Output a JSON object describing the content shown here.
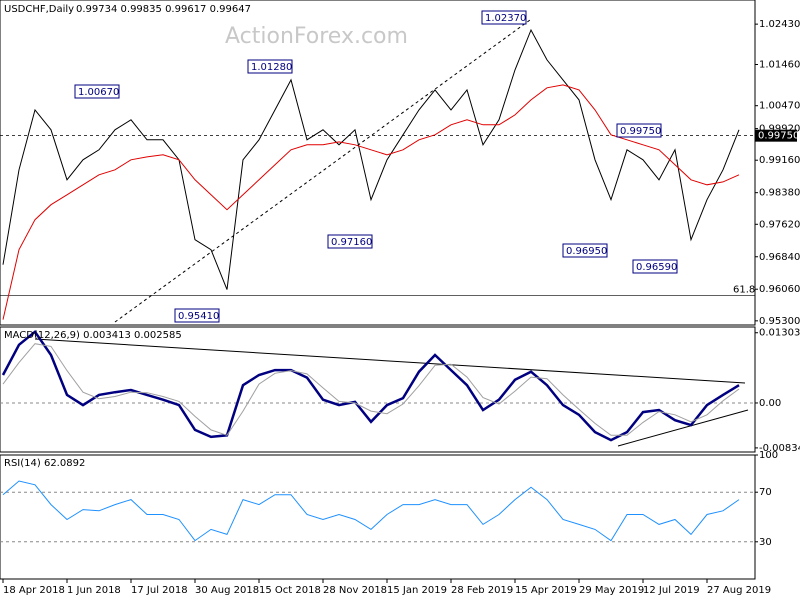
{
  "chart_data": [
    {
      "type": "line",
      "title": "USDCHF,Daily",
      "subtitle": "0.99734 0.99835 0.99617 0.99647",
      "watermark": "ActionForex.com",
      "categories": [
        "18 Apr 2018",
        null,
        null,
        null,
        "1 Jun 2018",
        null,
        null,
        null,
        "17 Jul 2018",
        null,
        null,
        null,
        "30 Aug 2018",
        null,
        null,
        null,
        "15 Oct 2018",
        null,
        null,
        null,
        "28 Nov 2018",
        null,
        null,
        null,
        "15 Jan 2019",
        null,
        null,
        null,
        "28 Feb 2019",
        null,
        null,
        null,
        "15 Apr 2019",
        null,
        null,
        null,
        "29 May 2019",
        null,
        null,
        null,
        "12 Jul 2019",
        null,
        null,
        null,
        "27 Aug 2019",
        null,
        null
      ],
      "series": [
        {
          "color": "#000000",
          "values": [
            0.9665,
            0.9893,
            1.0037,
            0.9989,
            0.9869,
            0.9917,
            0.9941,
            0.9989,
            1.0013,
            0.9965,
            0.9965,
            0.9917,
            0.9725,
            0.9701,
            0.9605,
            0.9917,
            0.9965,
            1.0037,
            1.0109,
            0.9965,
            0.9989,
            0.9953,
            0.9989,
            0.9821,
            0.9917,
            0.9977,
            1.0037,
            1.0085,
            1.0037,
            1.0085,
            0.9953,
            1.0013,
            1.0133,
            1.0229,
            1.0157,
            1.0109,
            1.0061,
            0.9917,
            0.9821,
            0.9941,
            0.9917,
            0.9869,
            0.9941,
            0.9725,
            0.9821,
            0.9893,
            0.9989
          ]
        },
        {
          "color": "#e00000",
          "values": [
            0.9533,
            0.9701,
            0.9773,
            0.9809,
            0.9833,
            0.9857,
            0.9881,
            0.9893,
            0.9917,
            0.9924,
            0.9929,
            0.9917,
            0.9869,
            0.9833,
            0.9797,
            0.9833,
            0.9869,
            0.9905,
            0.9941,
            0.9953,
            0.9953,
            0.996,
            0.9953,
            0.9941,
            0.9929,
            0.9941,
            0.9965,
            0.9977,
            1.0001,
            1.0013,
            1.0001,
            1.0001,
            1.0025,
            1.0061,
            1.009,
            1.0097,
            1.0085,
            1.0037,
            0.9977,
            0.9965,
            0.9953,
            0.9941,
            0.9905,
            0.9869,
            0.9857,
            0.9864,
            0.9881
          ]
        }
      ],
      "ylim": [
        0.952,
        1.0301
      ],
      "yticks": [
        {
          "value": 1.0243,
          "label": "1.02430"
        },
        {
          "value": 1.0146,
          "label": "1.01460"
        },
        {
          "value": 1.0047,
          "label": "1.00470"
        },
        {
          "value": 0.9992,
          "label": "0.99920"
        },
        {
          "value": 0.9916,
          "label": "0.99160"
        },
        {
          "value": 0.9838,
          "label": "0.98380"
        },
        {
          "value": 0.9762,
          "label": "0.97620"
        },
        {
          "value": 0.9684,
          "label": "0.96840"
        },
        {
          "value": 0.9606,
          "label": "0.96060"
        },
        {
          "value": 0.953,
          "label": "0.95300"
        }
      ],
      "hlines": [
        {
          "value": 0.9975,
          "label": "0.99750",
          "style": "dashed"
        },
        {
          "value": 0.9591,
          "label": "61.8",
          "style": "solid"
        }
      ],
      "annotations": [
        "1.00670",
        "1.01280",
        "1.02370",
        "0.97160",
        "0.95410",
        "0.96950",
        "0.96590",
        "0.99750"
      ]
    },
    {
      "type": "line",
      "title": "MACD(12,26,9) 0.003413 0.002585",
      "series": [
        {
          "color": "#000080",
          "values": [
            0.0052,
            0.0108,
            0.0132,
            0.0089,
            0.0015,
            -0.0004,
            0.0015,
            0.002,
            0.0024,
            0.0015,
            0.0006,
            -0.0004,
            -0.005,
            -0.0063,
            -0.006,
            0.0033,
            0.0052,
            0.0061,
            0.0061,
            0.0047,
            0.0006,
            -0.0004,
            0.0002,
            -0.0035,
            -0.0004,
            0.0009,
            0.0058,
            0.0089,
            0.0061,
            0.0033,
            -0.0013,
            0.0006,
            0.0043,
            0.0058,
            0.0033,
            -0.0004,
            -0.0022,
            -0.0054,
            -0.0069,
            -0.0054,
            -0.0017,
            -0.0013,
            -0.0032,
            -0.0041,
            -0.0004,
            0.0015,
            0.0033
          ]
        },
        {
          "color": "#a0a0a0",
          "values": [
            0.0035,
            0.0075,
            0.011,
            0.0105,
            0.006,
            0.002,
            0.0008,
            0.0012,
            0.002,
            0.0019,
            0.0012,
            0.0003,
            -0.0025,
            -0.005,
            -0.006,
            -0.0015,
            0.0035,
            0.0055,
            0.006,
            0.0054,
            0.0028,
            0.0003,
            0,
            -0.0015,
            -0.002,
            -0.0002,
            0.0032,
            0.007,
            0.0072,
            0.0048,
            0.001,
            -0.0002,
            0.0022,
            0.0048,
            0.0045,
            0.0015,
            -0.0012,
            -0.0038,
            -0.006,
            -0.006,
            -0.0036,
            -0.0016,
            -0.0022,
            -0.0035,
            -0.0022,
            0.0004,
            0.0026
          ]
        }
      ],
      "ylim": [
        -0.0091,
        0.0141
      ],
      "yticks": [
        0.013034,
        {
          "value": 0,
          "label": "0.00"
        },
        -0.00834
      ],
      "levels": [
        0
      ]
    },
    {
      "type": "line",
      "title": "RSI(14) 62.0892",
      "series": [
        {
          "color": "#1e90ff",
          "values": [
            68,
            79,
            76,
            60,
            48,
            56,
            55,
            60,
            64,
            52,
            52,
            48,
            31,
            40,
            36,
            64,
            60,
            68,
            68,
            52,
            48,
            52,
            48,
            40,
            52,
            60,
            60,
            64,
            60,
            60,
            44,
            52,
            64,
            74,
            64,
            48,
            44,
            40,
            31,
            52,
            52,
            44,
            48,
            36,
            52,
            55,
            64
          ]
        }
      ],
      "ylim": [
        0,
        100
      ],
      "yticks": [
        100,
        70,
        30
      ],
      "levels": [
        70,
        30
      ]
    }
  ]
}
